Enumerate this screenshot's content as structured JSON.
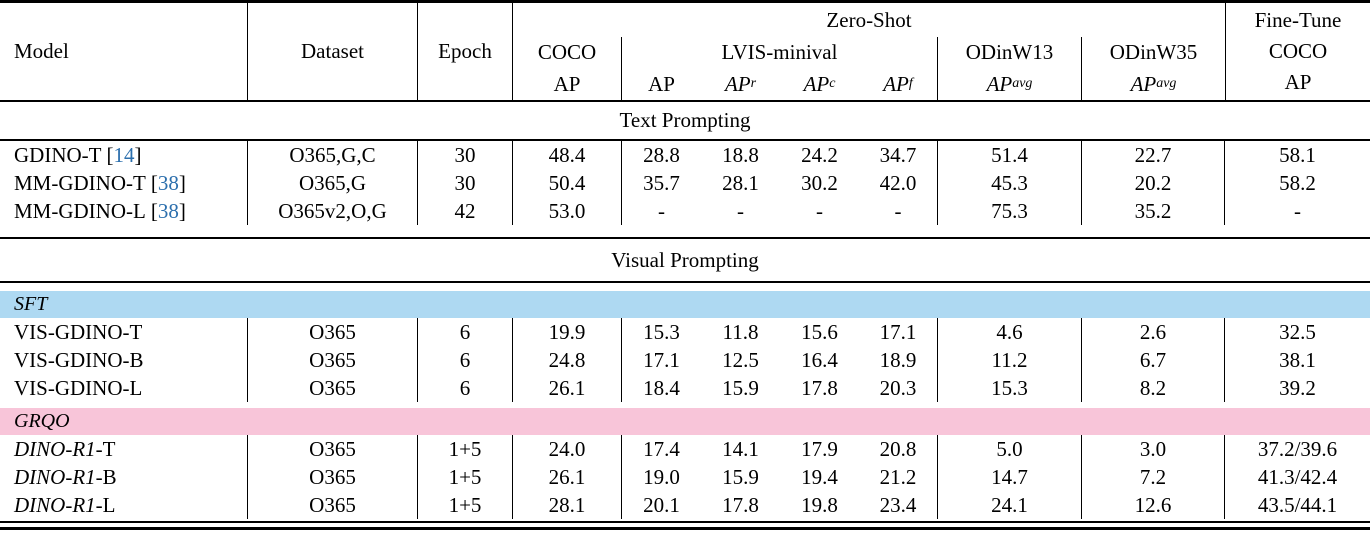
{
  "table": {
    "colors": {
      "cite": "#2c6fad",
      "sft_band": "#aed9f2",
      "grqo_band": "#f8c5d9"
    },
    "header": {
      "model": "Model",
      "dataset": "Dataset",
      "epoch": "Epoch",
      "coco_group": "COCO",
      "coco_metric": "AP",
      "zero_shot": "Zero-Shot",
      "lvis_group": "LVIS-minival",
      "lvis_cols": [
        {
          "base": "AP",
          "sub": ""
        },
        {
          "base": "AP",
          "sub": "r"
        },
        {
          "base": "AP",
          "sub": "c"
        },
        {
          "base": "AP",
          "sub": "f"
        }
      ],
      "odinw13": "ODinW13",
      "odinw13_metric": {
        "base": "AP",
        "sub": "avg"
      },
      "odinw35": "ODinW35",
      "odinw35_metric": {
        "base": "AP",
        "sub": "avg"
      },
      "finetune_line1": "Fine-Tune",
      "finetune_line2": "COCO",
      "finetune_line3": "AP"
    },
    "sections": {
      "text_prompting": "Text Prompting",
      "visual_prompting": "Visual Prompting",
      "sft_label": "SFT",
      "grqo_label": "GRQO"
    },
    "rows": {
      "text": [
        {
          "model": "GDINO-T",
          "cite_open": "[",
          "cite": "14",
          "cite_close": "]",
          "dataset": "O365,G,C",
          "epoch": "30",
          "coco": "48.4",
          "lvis": [
            "28.8",
            "18.8",
            "24.2",
            "34.7"
          ],
          "odinw13": "51.4",
          "odinw35": "22.7",
          "finetune": "58.1"
        },
        {
          "model": "MM-GDINO-T",
          "cite_open": "[",
          "cite": "38",
          "cite_close": "]",
          "dataset": "O365,G",
          "epoch": "30",
          "coco": "50.4",
          "lvis": [
            "35.7",
            "28.1",
            "30.2",
            "42.0"
          ],
          "odinw13": "45.3",
          "odinw35": "20.2",
          "finetune": "58.2"
        },
        {
          "model": "MM-GDINO-L",
          "cite_open": "[",
          "cite": "38",
          "cite_close": "]",
          "dataset": "O365v2,O,G",
          "epoch": "42",
          "coco": "53.0",
          "lvis": [
            "-",
            "-",
            "-",
            "-"
          ],
          "odinw13": "75.3",
          "odinw35": "35.2",
          "finetune": "-"
        }
      ],
      "sft": [
        {
          "model": "VIS-GDINO-T",
          "dataset": "O365",
          "epoch": "6",
          "coco": "19.9",
          "lvis": [
            "15.3",
            "11.8",
            "15.6",
            "17.1"
          ],
          "odinw13": "4.6",
          "odinw35": "2.6",
          "finetune": "32.5"
        },
        {
          "model": "VIS-GDINO-B",
          "dataset": "O365",
          "epoch": "6",
          "coco": "24.8",
          "lvis": [
            "17.1",
            "12.5",
            "16.4",
            "18.9"
          ],
          "odinw13": "11.2",
          "odinw35": "6.7",
          "finetune": "38.1"
        },
        {
          "model": "VIS-GDINO-L",
          "dataset": "O365",
          "epoch": "6",
          "coco": "26.1",
          "lvis": [
            "18.4",
            "15.9",
            "17.8",
            "20.3"
          ],
          "odinw13": "15.3",
          "odinw35": "8.2",
          "finetune": "39.2"
        }
      ],
      "grqo": [
        {
          "model_italic": "DINO-R1",
          "model_suffix": "-T",
          "dataset": "O365",
          "epoch": "1+5",
          "coco": "24.0",
          "lvis": [
            "17.4",
            "14.1",
            "17.9",
            "20.8"
          ],
          "odinw13": "5.0",
          "odinw35": "3.0",
          "finetune": "37.2/39.6"
        },
        {
          "model_italic": "DINO-R1",
          "model_suffix": "-B",
          "dataset": "O365",
          "epoch": "1+5",
          "coco": "26.1",
          "lvis": [
            "19.0",
            "15.9",
            "19.4",
            "21.2"
          ],
          "odinw13": "14.7",
          "odinw35": "7.2",
          "finetune": "41.3/42.4"
        },
        {
          "model_italic": "DINO-R1",
          "model_suffix": "-L",
          "dataset": "O365",
          "epoch": "1+5",
          "coco": "28.1",
          "lvis": [
            "20.1",
            "17.8",
            "19.8",
            "23.4"
          ],
          "odinw13": "24.1",
          "odinw35": "12.6",
          "finetune": "43.5/44.1"
        }
      ]
    }
  }
}
